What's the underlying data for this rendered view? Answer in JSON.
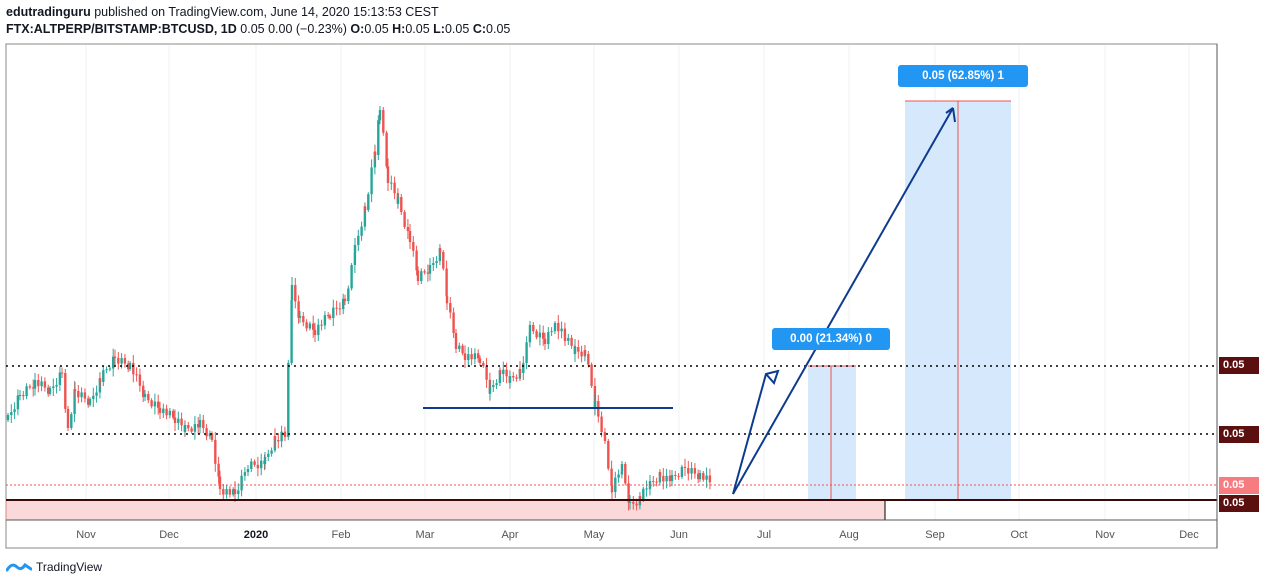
{
  "header": {
    "publisher": "edutradinguru",
    "published_text": "published on TradingView.com, June 14, 2020 15:13:53 CEST",
    "symbol": "FTX:ALTPERP/BITSTAMP:BTCUSD, 1D",
    "quote_line": "0.05 0.00 (−0.23%)",
    "ohlc": [
      {
        "label": "O:",
        "value": "0.05"
      },
      {
        "label": "H:",
        "value": "0.05"
      },
      {
        "label": "L:",
        "value": "0.05"
      },
      {
        "label": "C:",
        "value": "0.05"
      }
    ]
  },
  "price_axis": {
    "tags": [
      {
        "text": "0.05",
        "style": "dark"
      },
      {
        "text": "0.05",
        "style": "dark"
      },
      {
        "text": "0.05",
        "style": "red"
      },
      {
        "text": "0.05",
        "style": "dark"
      }
    ]
  },
  "time_axis": {
    "months": [
      "Nov",
      "Dec",
      "2020",
      "Feb",
      "Mar",
      "Apr",
      "May",
      "Jun",
      "Jul",
      "Aug",
      "Sep",
      "Oct",
      "Nov",
      "Dec"
    ],
    "bold_index": 2
  },
  "positions": [
    {
      "label": "0.00 (21.34%) 0"
    },
    {
      "label": "0.05 (62.85%) 1"
    }
  ],
  "footer": {
    "brand": "TradingView"
  },
  "colors": {
    "up": "#26a69a",
    "down": "#ef5350",
    "drawing": "#0d3b8f",
    "position_fill": "#cfe5fb",
    "label_bg": "#2196f3",
    "tag_dark": "#5b0f0f",
    "tag_red": "#f77c80"
  }
}
